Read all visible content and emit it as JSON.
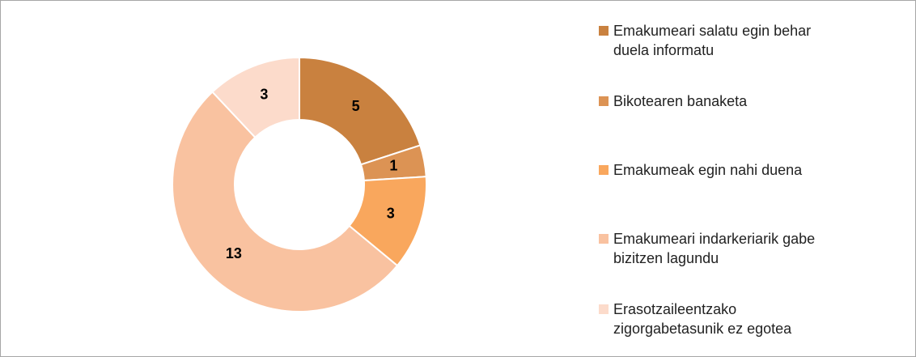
{
  "chart_data": {
    "type": "donut",
    "categories": [
      "Emakumeari salatu egin behar duela informatu",
      "Bikotearen banaketa",
      "Emakumeak egin nahi duena",
      "Emakumeari indarkeriarik gabe bizitzen lagundu",
      "Erasotzaileentzako zigorgabetasunik ez egotea"
    ],
    "values": [
      5,
      1,
      3,
      13,
      3
    ],
    "colors": [
      "#c9813f",
      "#dc9354",
      "#f9a75d",
      "#f9c2a0",
      "#fcdbcb"
    ],
    "legend": "right"
  }
}
